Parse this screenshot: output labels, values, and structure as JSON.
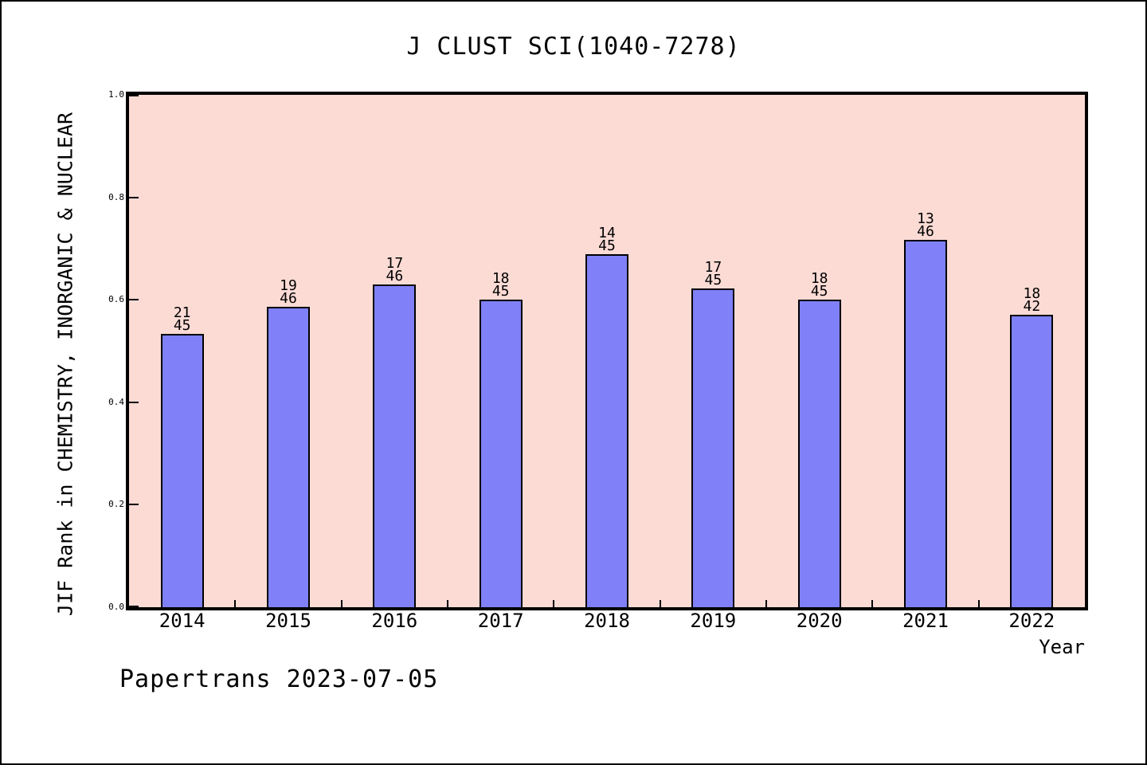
{
  "chart_data": {
    "type": "bar",
    "title": "J CLUST SCI(1040-7278)",
    "xlabel": "Year",
    "ylabel": "JIF Rank in CHEMISTRY, INORGANIC & NUCLEAR",
    "categories": [
      "2014",
      "2015",
      "2016",
      "2017",
      "2018",
      "2019",
      "2020",
      "2021",
      "2022"
    ],
    "values": [
      0.533,
      0.587,
      0.63,
      0.6,
      0.689,
      0.622,
      0.6,
      0.717,
      0.571
    ],
    "bar_labels": [
      {
        "rank": "21",
        "total": "45"
      },
      {
        "rank": "19",
        "total": "46"
      },
      {
        "rank": "17",
        "total": "46"
      },
      {
        "rank": "18",
        "total": "45"
      },
      {
        "rank": "14",
        "total": "45"
      },
      {
        "rank": "17",
        "total": "45"
      },
      {
        "rank": "18",
        "total": "45"
      },
      {
        "rank": "13",
        "total": "46"
      },
      {
        "rank": "18",
        "total": "42"
      }
    ],
    "ylim": [
      0.0,
      1.0
    ],
    "yticks": [
      "1.0",
      "0.8",
      "0.6",
      "0.4",
      "0.2",
      "0.0"
    ],
    "ytick_values": [
      1.0,
      0.8,
      0.6,
      0.4,
      0.2,
      0.0
    ],
    "grid": false,
    "legend_position": "none",
    "bar_color": "#8080f8",
    "bar_border_color": "#000000",
    "plot_background": "#fcdbd5"
  },
  "footer": {
    "text": "Papertrans 2023-07-05"
  }
}
